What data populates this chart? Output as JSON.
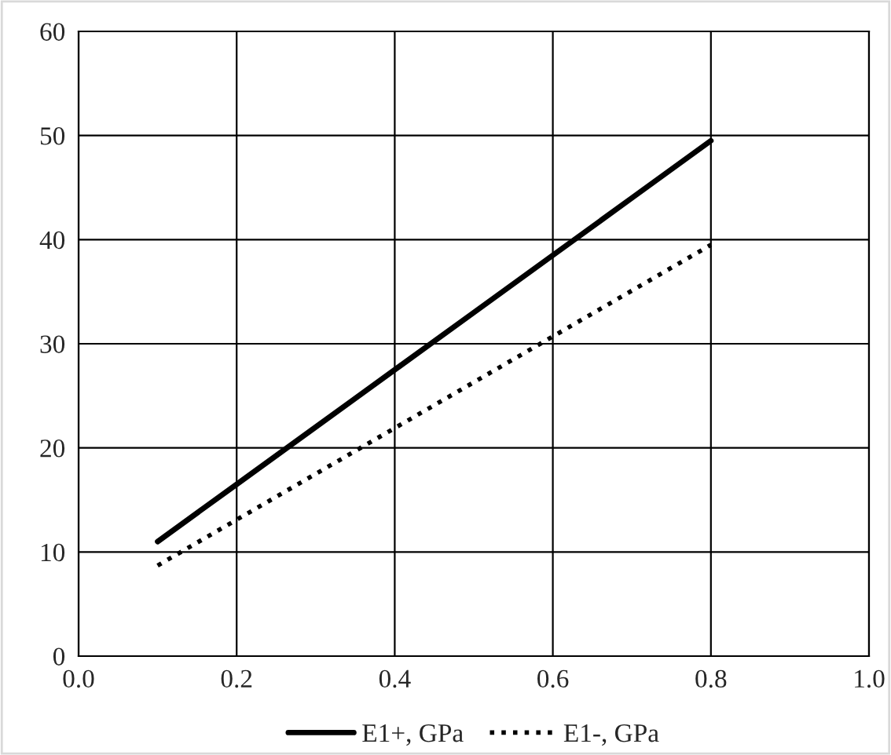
{
  "chart_data": {
    "type": "line",
    "x": [
      0.1,
      0.2,
      0.3,
      0.4,
      0.5,
      0.6,
      0.7,
      0.8
    ],
    "series": [
      {
        "name": "E1+, GPa",
        "color": "#000000",
        "line_style": "solid",
        "values": [
          11,
          16.5,
          22,
          27.5,
          33,
          38.5,
          44,
          49.5
        ]
      },
      {
        "name": "E1-, GPa",
        "color": "#000000",
        "line_style": "dotted",
        "values": [
          8.7,
          13.1,
          17.5,
          21.9,
          26.3,
          30.7,
          35.1,
          39.5
        ]
      }
    ],
    "xlim": [
      0.0,
      1.0
    ],
    "xticks": [
      {
        "value": 0,
        "label": "0.0"
      },
      0.2,
      0.4,
      0.6,
      0.8,
      {
        "value": 1,
        "label": "1.0"
      }
    ],
    "ylim": [
      0,
      60
    ],
    "yticks": [
      0,
      10,
      20,
      30,
      40,
      50,
      60
    ],
    "grid": true,
    "legend": "bottom",
    "marker": "none"
  }
}
